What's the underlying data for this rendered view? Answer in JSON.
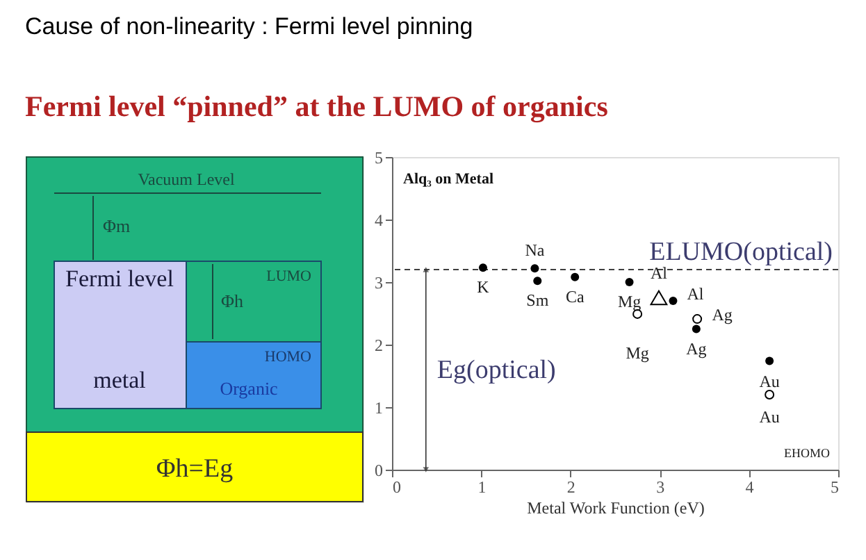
{
  "chart_data": [
    {
      "type": "other",
      "title": "Cause of non-linearity : Fermi level pinning",
      "subtitle": "Fermi level “pinned” at the LUMO of organics",
      "annotations": [
        "Vacuum Level",
        "Φm",
        "Fermi level",
        "LUMO",
        "Φh",
        "HOMO",
        "metal",
        "Organic",
        "Φh=Eg"
      ]
    },
    {
      "type": "scatter",
      "title": "Alq₃ on Metal",
      "xlabel": "Metal Work Function (eV)",
      "xlim": [
        0,
        5
      ],
      "xticks": [
        0,
        1,
        2,
        3,
        4,
        5
      ],
      "ylim": [
        0,
        5
      ],
      "yticks": [
        0,
        1,
        2,
        3,
        4,
        5
      ],
      "grid": false,
      "series": [
        {
          "color": "#000000",
          "marker": "circle",
          "x": [
            1.02,
            1.6,
            1.63,
            2.05,
            2.66,
            3.15,
            3.41,
            4.23
          ],
          "values": [
            3.23,
            3.22,
            3.02,
            3.08,
            3.0,
            2.7,
            2.25,
            1.74
          ],
          "value_labels": [
            "K",
            "Na",
            "Sm",
            "Ca",
            "Mg",
            "Al",
            "Ag",
            "Au"
          ]
        },
        {
          "color": "#000000",
          "marker": "circle",
          "x": [
            2.75,
            3.42,
            4.23
          ],
          "values": [
            2.49,
            2.41,
            1.2
          ],
          "value_labels": [
            "Mg",
            "Ag",
            "Au"
          ]
        },
        {
          "color": "#000000",
          "marker": "triangle",
          "x": [
            2.99
          ],
          "values": [
            2.75
          ],
          "value_labels": [
            "Al"
          ]
        }
      ],
      "ref_lines": [
        {
          "axis": "y",
          "value": 3.2,
          "label": "ELUMO(optical)",
          "line_style": "dashed",
          "color": "#000000"
        }
      ],
      "annotations": [
        "Eg(optical)",
        "EHOMO"
      ]
    }
  ]
}
